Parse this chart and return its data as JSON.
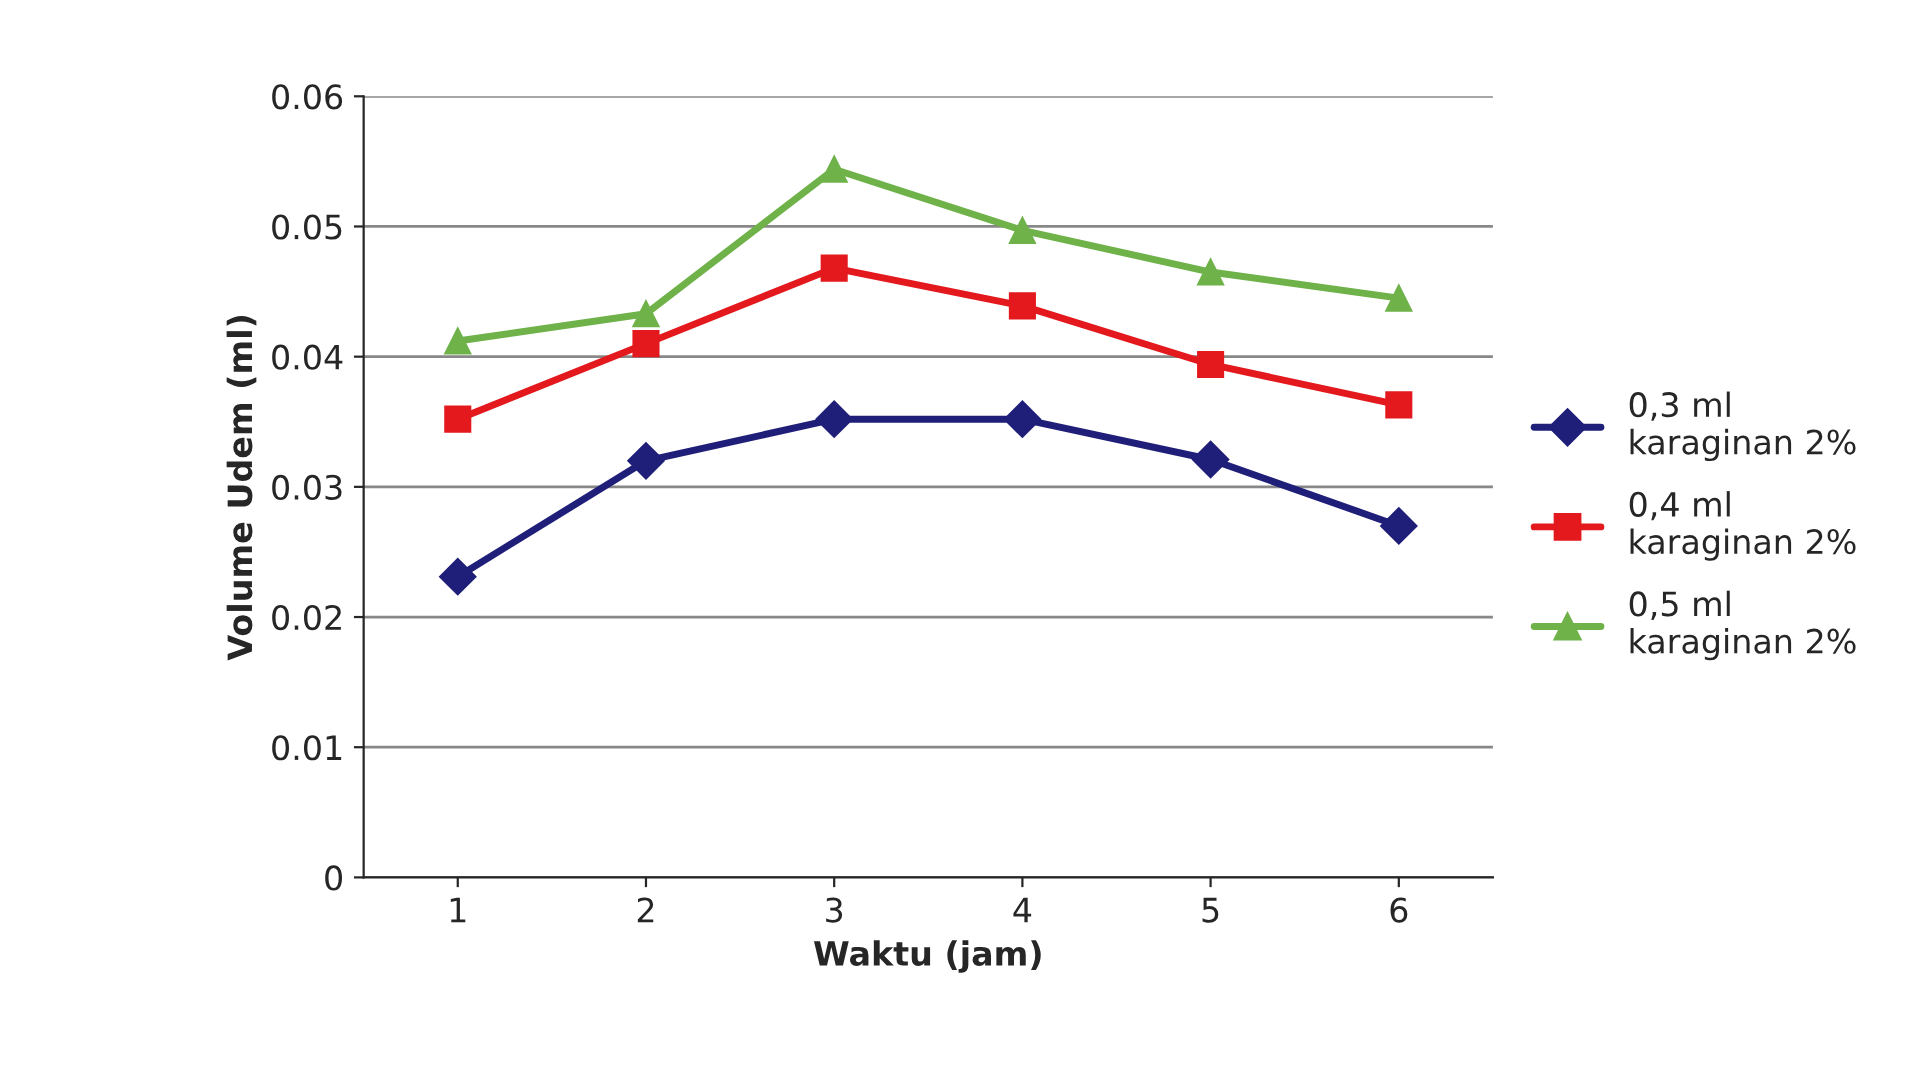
{
  "chart_data": {
    "type": "line",
    "xlabel": "Waktu (jam)",
    "ylabel": "Volume Udem (ml)",
    "categories": [
      "1",
      "2",
      "3",
      "4",
      "5",
      "6"
    ],
    "series": [
      {
        "name": "0,3 ml\nkaraginan 2%",
        "color": "#1f1f7a",
        "marker": "diamond",
        "values": [
          0.0231,
          0.032,
          0.0352,
          0.0352,
          0.0321,
          0.027
        ]
      },
      {
        "name": "0,4 ml\nkaraginan 2%",
        "color": "#e3191e",
        "marker": "square",
        "values": [
          0.0352,
          0.041,
          0.0468,
          0.0439,
          0.0394,
          0.0363
        ]
      },
      {
        "name": "0,5 ml\nkaraginan 2%",
        "color": "#6fb24a",
        "marker": "triangle",
        "values": [
          0.0412,
          0.0433,
          0.0544,
          0.0497,
          0.0465,
          0.0445
        ]
      }
    ],
    "ylim": [
      0,
      0.06
    ],
    "yticks": [
      0,
      0.01,
      0.02,
      0.03,
      0.04,
      0.05,
      0.06
    ],
    "grid": "y",
    "legend": "right",
    "line_style": "solid"
  }
}
